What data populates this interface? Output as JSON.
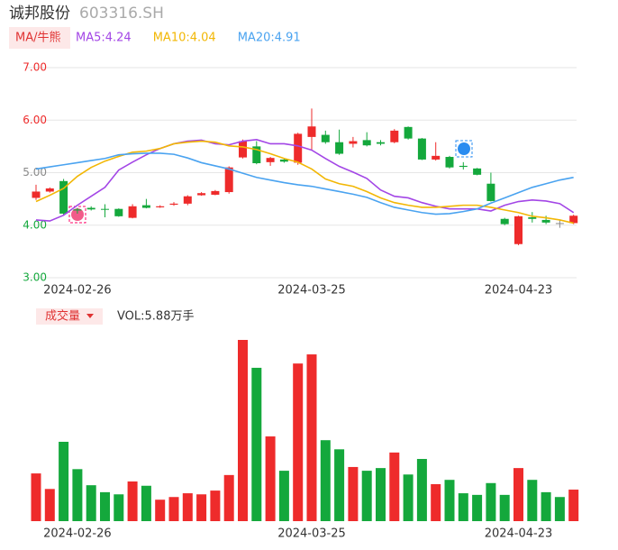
{
  "chart_data": {
    "type": "candlestick",
    "title": "诚邦股份",
    "subtitle": "603316.SH",
    "ma_tag": "MA/牛熊",
    "categories": [
      null,
      null,
      null,
      "2024-02-26",
      null,
      null,
      null,
      null,
      null,
      null,
      null,
      null,
      null,
      null,
      null,
      null,
      null,
      null,
      null,
      null,
      "2024-03-25",
      null,
      null,
      null,
      null,
      null,
      null,
      null,
      null,
      null,
      null,
      null,
      null,
      null,
      null,
      "2024-04-23",
      null,
      null,
      null,
      null
    ],
    "open": [
      4.52,
      4.64,
      4.84,
      4.3,
      4.33,
      4.31,
      4.31,
      4.14,
      4.38,
      4.34,
      4.39,
      4.41,
      4.57,
      4.58,
      4.63,
      5.29,
      5.5,
      5.2,
      5.25,
      5.19,
      5.68,
      5.72,
      5.58,
      5.55,
      5.62,
      5.58,
      5.58,
      5.87,
      5.65,
      5.25,
      5.3,
      5.13,
      5.08,
      4.79,
      4.12,
      3.64,
      4.15,
      4.1,
      4.04,
      4.04
    ],
    "high": [
      4.77,
      4.72,
      4.88,
      4.33,
      4.36,
      4.4,
      4.32,
      4.4,
      4.5,
      4.38,
      4.44,
      4.57,
      4.63,
      4.67,
      5.12,
      5.63,
      5.6,
      5.3,
      5.27,
      5.76,
      6.22,
      5.8,
      5.82,
      5.68,
      5.77,
      5.62,
      5.83,
      5.88,
      5.66,
      5.58,
      5.32,
      5.2,
      5.09,
      5.0,
      4.14,
      4.18,
      4.25,
      4.18,
      4.1,
      4.2
    ],
    "low": [
      4.48,
      4.62,
      4.2,
      4.22,
      4.28,
      4.15,
      4.16,
      4.13,
      4.32,
      4.33,
      4.37,
      4.38,
      4.56,
      4.57,
      4.6,
      5.27,
      5.16,
      5.13,
      5.19,
      5.15,
      5.42,
      5.55,
      5.34,
      5.48,
      5.5,
      5.52,
      5.56,
      5.63,
      5.24,
      5.23,
      5.08,
      5.06,
      4.95,
      4.45,
      4.0,
      3.62,
      4.05,
      4.02,
      3.95,
      4.02
    ],
    "close": [
      4.64,
      4.7,
      4.22,
      4.28,
      4.3,
      4.3,
      4.17,
      4.36,
      4.33,
      4.36,
      4.41,
      4.55,
      4.61,
      4.65,
      5.1,
      5.6,
      5.18,
      5.28,
      5.21,
      5.74,
      5.88,
      5.58,
      5.36,
      5.6,
      5.52,
      5.55,
      5.8,
      5.65,
      5.25,
      5.32,
      5.1,
      5.11,
      4.96,
      4.46,
      4.02,
      4.17,
      4.12,
      4.05,
      4.04,
      4.18
    ],
    "ylim": [
      3,
      7
    ],
    "yticks": [
      {
        "value": 3,
        "label": "3.00"
      },
      {
        "value": 4,
        "label": "4.00"
      },
      {
        "value": 5,
        "label": "5.00"
      },
      {
        "value": 6,
        "label": "6.00"
      },
      {
        "value": 7,
        "label": "7.00"
      }
    ],
    "grid": true,
    "up_color": "#ee2b2b",
    "down_color": "#14a83c",
    "flat_color": "#8a8a8a",
    "ma_lines": [
      {
        "name": "MA5:4.24",
        "color": "#a346e6",
        "values": [
          4.1,
          4.08,
          4.19,
          4.38,
          4.55,
          4.72,
          5.05,
          5.2,
          5.34,
          5.46,
          5.55,
          5.6,
          5.62,
          5.55,
          5.53,
          5.6,
          5.63,
          5.55,
          5.55,
          5.51,
          5.43,
          5.27,
          5.12,
          5.01,
          4.89,
          4.67,
          4.55,
          4.52,
          4.43,
          4.36,
          4.31,
          4.31,
          4.31,
          4.27,
          4.38,
          4.45,
          4.48,
          4.46,
          4.41,
          4.24
        ]
      },
      {
        "name": "MA10:4.04",
        "color": "#f2b705",
        "values": [
          4.45,
          4.57,
          4.7,
          4.93,
          5.1,
          5.22,
          5.31,
          5.39,
          5.41,
          5.46,
          5.55,
          5.58,
          5.6,
          5.58,
          5.51,
          5.49,
          5.44,
          5.36,
          5.27,
          5.2,
          5.07,
          4.88,
          4.79,
          4.74,
          4.64,
          4.52,
          4.43,
          4.38,
          4.34,
          4.34,
          4.36,
          4.38,
          4.38,
          4.34,
          4.29,
          4.24,
          4.17,
          4.14,
          4.1,
          4.04
        ]
      },
      {
        "name": "MA20:4.91",
        "color": "#4aa3f0",
        "values": [
          5.07,
          5.11,
          5.15,
          5.19,
          5.23,
          5.27,
          5.34,
          5.36,
          5.37,
          5.37,
          5.35,
          5.28,
          5.19,
          5.13,
          5.07,
          4.99,
          4.91,
          4.86,
          4.81,
          4.77,
          4.74,
          4.69,
          4.64,
          4.59,
          4.53,
          4.43,
          4.34,
          4.29,
          4.24,
          4.21,
          4.22,
          4.26,
          4.31,
          4.42,
          4.52,
          4.62,
          4.72,
          4.79,
          4.86,
          4.91
        ]
      }
    ],
    "volume": {
      "title": "成交量",
      "label": "VOL:5.88万手",
      "values": [
        8.9,
        6.0,
        14.8,
        9.7,
        6.7,
        5.4,
        5.0,
        7.4,
        6.6,
        4.0,
        4.5,
        5.2,
        5.0,
        5.7,
        8.6,
        33.8,
        28.6,
        15.8,
        9.4,
        29.4,
        31.1,
        15.1,
        13.4,
        10.1,
        9.4,
        9.9,
        12.8,
        8.7,
        11.6,
        6.9,
        7.7,
        5.2,
        4.9,
        7.1,
        4.9,
        9.9,
        7.7,
        5.4,
        4.5,
        5.88
      ]
    }
  }
}
